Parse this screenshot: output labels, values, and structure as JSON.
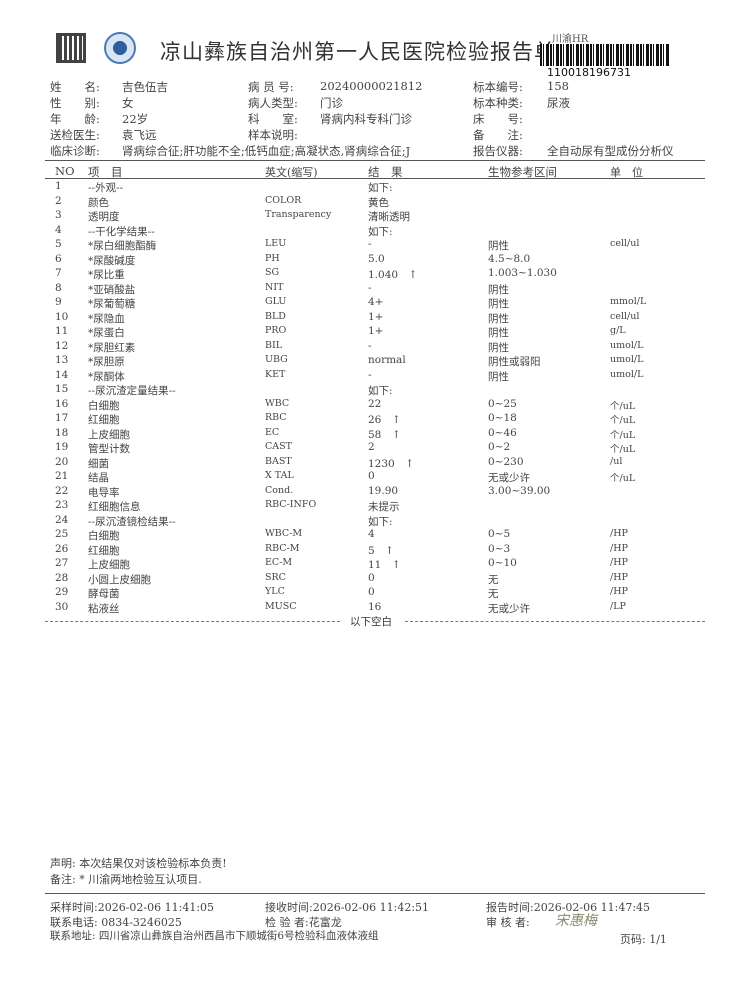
{
  "header": {
    "title": "凉山彝族自治州第一人民医院检验报告单",
    "barcode_tag": "川渝HR",
    "barcode_number": "110018196731"
  },
  "patient": [
    [
      {
        "label": "姓　　名:",
        "value": "吉色伍吉"
      },
      {
        "label": "病 员 号:",
        "value": "20240000021812"
      },
      {
        "label": "标本编号:",
        "value": "158"
      }
    ],
    [
      {
        "label": "性　　别:",
        "value": "女"
      },
      {
        "label": "病人类型:",
        "value": "门诊"
      },
      {
        "label": "标本种类:",
        "value": "尿液"
      }
    ],
    [
      {
        "label": "年　　龄:",
        "value": "22岁"
      },
      {
        "label": "科　　室:",
        "value": "肾病内科专科门诊"
      },
      {
        "label": "床　　号:",
        "value": ""
      }
    ],
    [
      {
        "label": "送检医生:",
        "value": "袁飞远"
      },
      {
        "label": "样本说明:",
        "value": ""
      },
      {
        "label": "备　　注:",
        "value": ""
      }
    ]
  ],
  "diagnosis": {
    "label": "临床诊断:",
    "value": "肾病综合征;肝功能不全;低钙血症;高凝状态,肾病综合征;J",
    "instrument_label": "报告仪器:",
    "instrument": "全自动尿有型成份分析仪"
  },
  "table": {
    "headers": [
      "NO",
      "项　目",
      "英文(缩写)",
      "结　果",
      "生物参考区间",
      "单　位"
    ],
    "rows": [
      [
        "1",
        "--外观--",
        "",
        "如下:",
        "",
        ""
      ],
      [
        "2",
        "颜色",
        "COLOR",
        "黄色",
        "",
        ""
      ],
      [
        "3",
        "透明度",
        "Transparency",
        "清晰透明",
        "",
        ""
      ],
      [
        "4",
        "--干化学结果--",
        "",
        "如下:",
        "",
        ""
      ],
      [
        "5",
        "*尿白细胞酯酶",
        "LEU",
        "-",
        "阴性",
        "cell/ul"
      ],
      [
        "6",
        "*尿酸碱度",
        "PH",
        "5.0",
        "4.5~8.0",
        ""
      ],
      [
        "7",
        "*尿比重",
        "SG",
        "1.040　↑",
        "1.003~1.030",
        ""
      ],
      [
        "8",
        "*亚硝酸盐",
        "NIT",
        "-",
        "阴性",
        ""
      ],
      [
        "9",
        "*尿葡萄糖",
        "GLU",
        "4+",
        "阴性",
        "mmol/L"
      ],
      [
        "10",
        "*尿隐血",
        "BLD",
        "1+",
        "阴性",
        "cell/ul"
      ],
      [
        "11",
        "*尿蛋白",
        "PRO",
        "1+",
        "阴性",
        "g/L"
      ],
      [
        "12",
        "*尿胆红素",
        "BIL",
        "-",
        "阴性",
        "umol/L"
      ],
      [
        "13",
        "*尿胆原",
        "UBG",
        "normal",
        "阴性或弱阳",
        "umol/L"
      ],
      [
        "14",
        "*尿酮体",
        "KET",
        "-",
        "阴性",
        "umol/L"
      ],
      [
        "15",
        "--尿沉渣定量结果--",
        "",
        "如下:",
        "",
        ""
      ],
      [
        "16",
        "白细胞",
        "WBC",
        "22",
        "0~25",
        "个/uL"
      ],
      [
        "17",
        "红细胞",
        "RBC",
        "26　↑",
        "0~18",
        "个/uL"
      ],
      [
        "18",
        "上皮细胞",
        "EC",
        "58　↑",
        "0~46",
        "个/uL"
      ],
      [
        "19",
        "管型计数",
        "CAST",
        "2",
        "0~2",
        "个/uL"
      ],
      [
        "20",
        "细菌",
        "BAST",
        "1230　↑",
        "0~230",
        "/ul"
      ],
      [
        "21",
        "结晶",
        "X TAL",
        "0",
        "无或少许",
        "个/uL"
      ],
      [
        "22",
        "电导率",
        "Cond.",
        "19.90",
        "3.00~39.00",
        ""
      ],
      [
        "23",
        "红细胞信息",
        "RBC-INFO",
        "未提示",
        "",
        ""
      ],
      [
        "24",
        "--尿沉渣镜检结果--",
        "",
        "如下:",
        "",
        ""
      ],
      [
        "25",
        "白细胞",
        "WBC-M",
        "4",
        "0~5",
        "/HP"
      ],
      [
        "26",
        "红细胞",
        "RBC-M",
        "5　↑",
        "0~3",
        "/HP"
      ],
      [
        "27",
        "上皮细胞",
        "EC-M",
        "11　↑",
        "0~10",
        "/HP"
      ],
      [
        "28",
        "小圆上皮细胞",
        "SRC",
        "0",
        "无",
        "/HP"
      ],
      [
        "29",
        "酵母菌",
        "YLC",
        "0",
        "无",
        "/HP"
      ],
      [
        "30",
        "粘液丝",
        "MUSC",
        "16",
        "无或少许",
        "/LP"
      ]
    ],
    "end_note": "以下空白"
  },
  "footer": {
    "statement": "声明: 本次结果仅对该检验标本负责!",
    "remark": "备注: * 川渝两地检验互认项目.",
    "sample_time": "采样时间:2026-02-06 11:41:05",
    "receive_time": "接收时间:2026-02-06 11:42:51",
    "report_time": "报告时间:2026-02-06 11:47:45",
    "phone": "联系电话: 0834-3246025",
    "inspector": "检 验 者:花富龙",
    "reviewer_label": "审 核 者:",
    "reviewer_signature": "宋惠梅",
    "address": "联系地址: 四川省凉山彝族自治州西昌市下顺城街6号检验科血液体液组",
    "page": "页码: 1/1"
  }
}
